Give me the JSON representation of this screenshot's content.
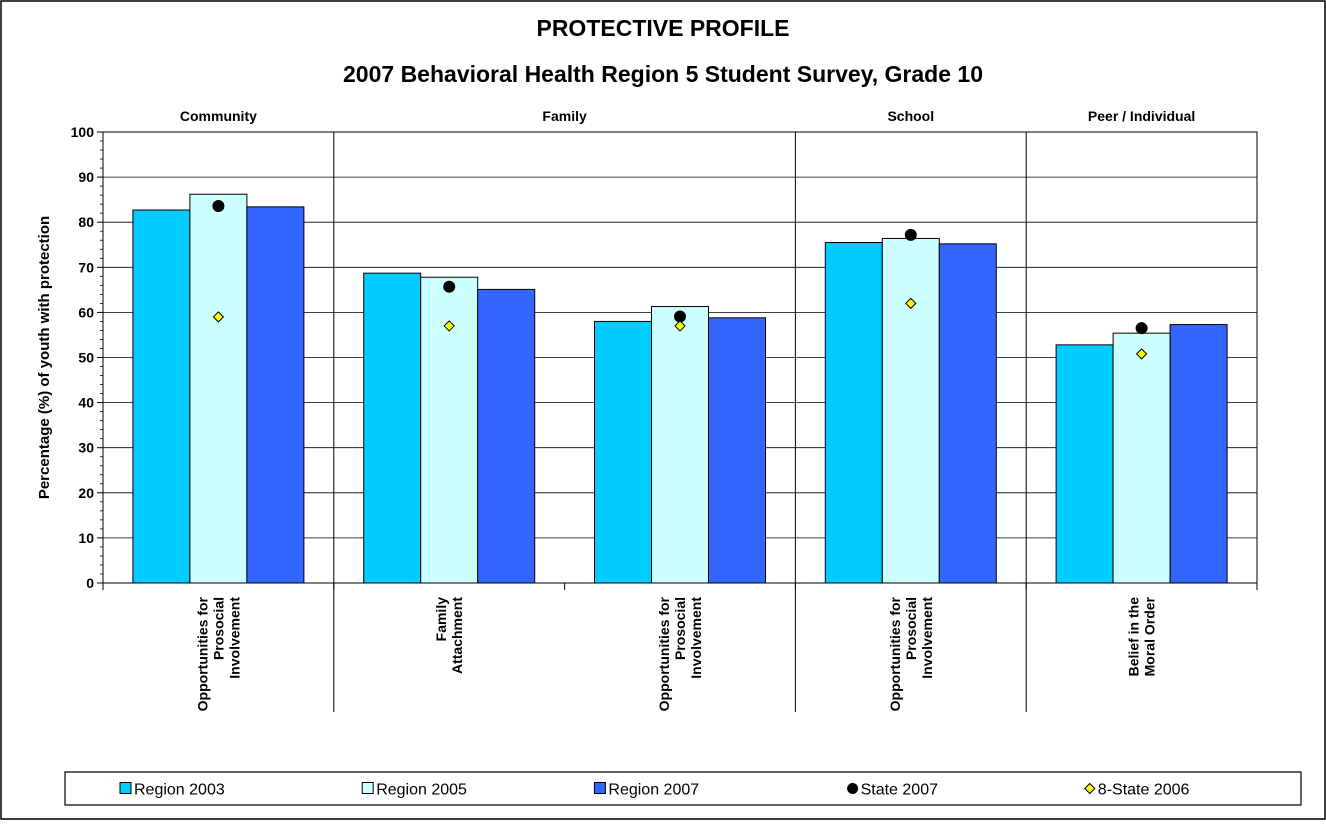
{
  "chart_data": {
    "type": "bar",
    "title": "PROTECTIVE PROFILE",
    "subtitle": "2007 Behavioral Health Region 5 Student Survey, Grade 10",
    "ylabel": "Percentage (%) of youth with protection",
    "ylim": [
      0,
      100
    ],
    "yticks": [
      "0",
      "10",
      "20",
      "30",
      "40",
      "50",
      "60",
      "70",
      "80",
      "90",
      "100"
    ],
    "grid": true,
    "legend_position": "bottom",
    "groups": [
      {
        "label": "Community",
        "span": [
          0,
          1
        ]
      },
      {
        "label": "Family",
        "span": [
          1,
          3
        ]
      },
      {
        "label": "School",
        "span": [
          3,
          4
        ]
      },
      {
        "label": "Peer / Individual",
        "span": [
          4,
          5
        ]
      }
    ],
    "categories": [
      [
        "Opportunities for",
        "Prosocial",
        "Involvement"
      ],
      [
        "Family",
        "Attachment"
      ],
      [
        "Opportunities for",
        "Prosocial",
        "Involvement"
      ],
      [
        "Opportunities for",
        "Prosocial",
        "Involvement"
      ],
      [
        "Belief in the",
        "Moral Order"
      ]
    ],
    "series": [
      {
        "name": "Region 2003",
        "kind": "bar",
        "color": "#00CCFF",
        "values": [
          82.7,
          68.7,
          58.0,
          75.5,
          52.8
        ]
      },
      {
        "name": "Region 2005",
        "kind": "bar",
        "color": "#CCFFFF",
        "values": [
          86.2,
          67.8,
          61.3,
          76.4,
          55.4
        ]
      },
      {
        "name": "Region 2007",
        "kind": "bar",
        "color": "#3366FF",
        "values": [
          83.4,
          65.1,
          58.8,
          75.2,
          57.3
        ]
      },
      {
        "name": "State 2007",
        "kind": "marker",
        "marker": "circle",
        "color": "#000000",
        "values": [
          83.6,
          65.7,
          59.1,
          77.2,
          56.5
        ]
      },
      {
        "name": "8-State 2006",
        "kind": "marker",
        "marker": "diamond",
        "color": "#FFFF00",
        "values": [
          59.0,
          57.0,
          57.0,
          62.0,
          50.8
        ]
      }
    ]
  }
}
